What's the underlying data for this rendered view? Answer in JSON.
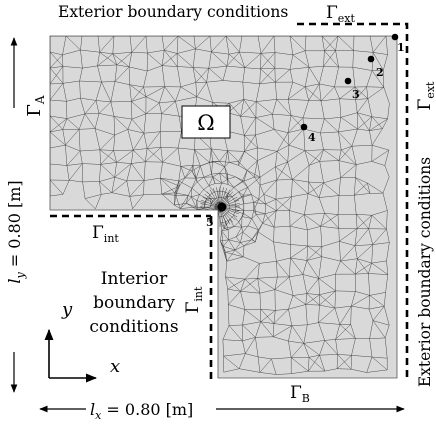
{
  "colors": {
    "domain_fill": "#d9d9d9",
    "mesh_stroke": "#3a3a3a",
    "ink": "#000000",
    "label_box_fill": "#ffffff"
  },
  "labels": {
    "top_exterior": "Exterior boundary conditions",
    "right_exterior": "Exterior boundary conditions",
    "gamma_ext_top": {
      "symbol": "Γ",
      "sub": "ext"
    },
    "gamma_ext_right": {
      "symbol": "Γ",
      "sub": "ext"
    },
    "gamma_a": {
      "symbol": "Γ",
      "sub": "A"
    },
    "gamma_b": {
      "symbol": "Γ",
      "sub": "B"
    },
    "gamma_int_horizontal": {
      "symbol": "Γ",
      "sub": "int"
    },
    "gamma_int_vertical": {
      "symbol": "Γ",
      "sub": "int"
    },
    "omega": "Ω",
    "interior_lines": [
      "Interior",
      "boundary",
      "conditions"
    ],
    "axis_x": "x",
    "axis_y": "y",
    "dim_x": {
      "name": "l",
      "sub": "x",
      "value": " = 0.80 [m]"
    },
    "dim_y": {
      "name": "l",
      "sub": "y",
      "value": " = 0.80 [m]"
    }
  },
  "points": [
    {
      "id": "1"
    },
    {
      "id": "2"
    },
    {
      "id": "3"
    },
    {
      "id": "4"
    },
    {
      "id": "5"
    }
  ]
}
